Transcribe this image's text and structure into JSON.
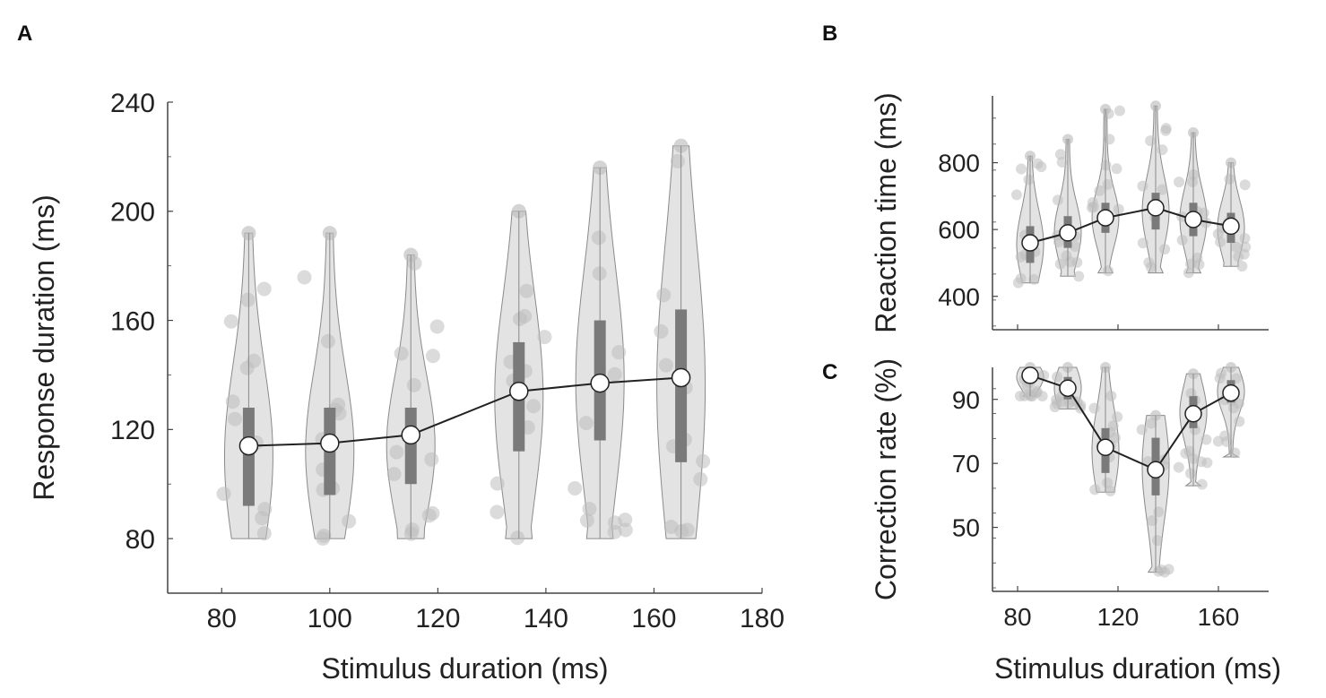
{
  "panel_letters": {
    "a": "A",
    "b": "B",
    "c": "C"
  },
  "colors": {
    "axis": "#444444",
    "violin_fill": "#e3e3e3",
    "violin_edge": "#8a8a8a",
    "dots": "#bdbdbd",
    "box": "#7a7a7a",
    "mean_line": "#222222",
    "mean_marker_fill": "#ffffff"
  },
  "chart_data": [
    {
      "panel": "A",
      "type": "violin",
      "title": "",
      "xlabel": "Stimulus duration (ms)",
      "ylabel": "Response duration (ms)",
      "xlim": [
        70,
        180
      ],
      "ylim": [
        60,
        240
      ],
      "xticks": [
        80,
        100,
        120,
        140,
        160,
        180
      ],
      "yticks": [
        80,
        120,
        160,
        200,
        240
      ],
      "x": [
        85,
        100,
        115,
        135,
        150,
        165
      ],
      "means": [
        114,
        115,
        118,
        134,
        137,
        139
      ],
      "box_q1": [
        92,
        96,
        100,
        112,
        116,
        108
      ],
      "box_q3": [
        128,
        128,
        128,
        152,
        160,
        164
      ],
      "whisker_low": [
        80,
        80,
        80,
        80,
        80,
        80
      ],
      "whisker_high": [
        192,
        192,
        184,
        200,
        216,
        224
      ]
    },
    {
      "panel": "B",
      "type": "violin",
      "title": "",
      "xlabel": "",
      "ylabel": "Reaction time (ms)",
      "xlim": [
        70,
        180
      ],
      "ylim": [
        300,
        1000
      ],
      "xticks": [
        80,
        120,
        160
      ],
      "yticks": [
        400,
        600,
        800
      ],
      "x": [
        85,
        100,
        115,
        135,
        150,
        165
      ],
      "means": [
        560,
        590,
        635,
        665,
        630,
        610
      ],
      "box_q1": [
        500,
        545,
        590,
        600,
        580,
        560
      ],
      "box_q3": [
        610,
        640,
        680,
        710,
        680,
        650
      ],
      "whisker_low": [
        440,
        460,
        470,
        470,
        470,
        490
      ],
      "whisker_high": [
        820,
        870,
        960,
        970,
        890,
        800
      ]
    },
    {
      "panel": "C",
      "type": "violin",
      "title": "",
      "xlabel": "Stimulus duration (ms)",
      "ylabel": "Correction rate (%)",
      "xlim": [
        70,
        180
      ],
      "ylim": [
        30,
        100
      ],
      "xticks": [
        80,
        120,
        160
      ],
      "yticks": [
        50,
        70,
        90
      ],
      "x": [
        85,
        100,
        115,
        135,
        150,
        165
      ],
      "means": [
        97.5,
        93.5,
        75,
        68,
        85.5,
        92
      ],
      "box_q1": [
        95,
        90,
        67,
        60,
        81,
        89
      ],
      "box_q3": [
        99,
        97,
        81,
        78,
        91,
        96
      ],
      "whisker_low": [
        91,
        87,
        61,
        36,
        63,
        72
      ],
      "whisker_high": [
        100,
        100,
        100,
        85,
        98,
        100
      ]
    }
  ]
}
